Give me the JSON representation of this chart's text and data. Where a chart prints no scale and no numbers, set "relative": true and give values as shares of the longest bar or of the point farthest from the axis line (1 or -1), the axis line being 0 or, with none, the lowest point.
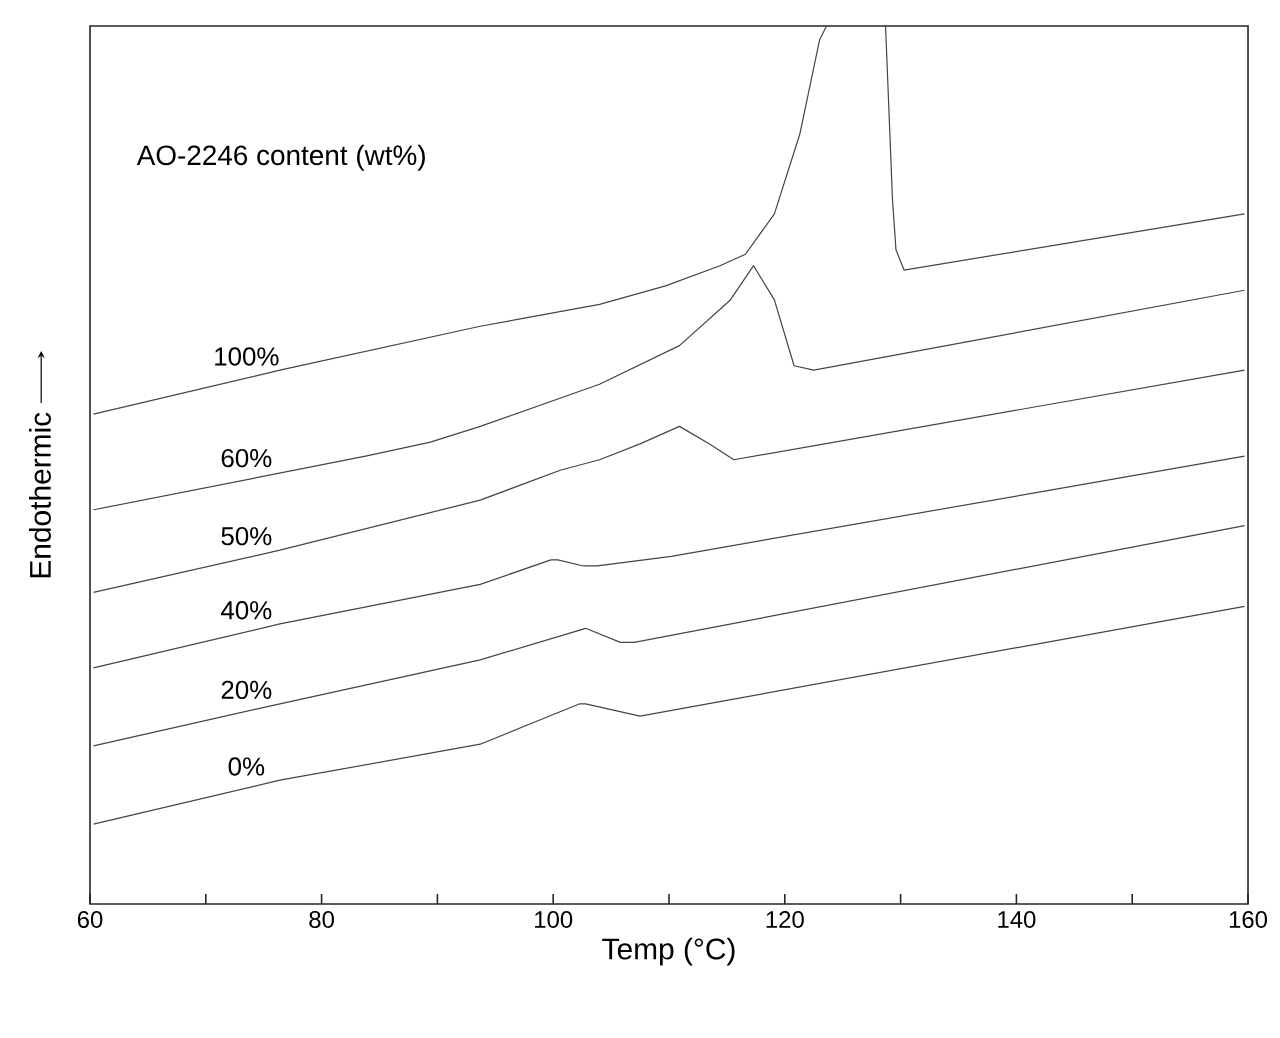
{
  "chart_data": {
    "type": "line",
    "relative": true,
    "xlabel": "Temp (°C)",
    "ylabel": "Endothermic",
    "annotations": [
      "AO-2246 content (wt%)"
    ],
    "xlim": [
      60,
      160
    ],
    "xticks": [
      60,
      {
        "value": 70,
        "label": null
      },
      80,
      {
        "value": 90,
        "label": null
      },
      100,
      {
        "value": 110,
        "label": null
      },
      120,
      {
        "value": 130,
        "label": null
      },
      140,
      {
        "value": 150,
        "label": null
      },
      160
    ],
    "tick_labels": "x",
    "grid": false,
    "legend": false,
    "marker": "none",
    "line_style": "solid",
    "series": [
      {
        "name": "100%",
        "color": "#444444",
        "x": [
          60.3,
          76.4,
          93.7,
          104.0,
          109.7,
          114.4,
          116.6,
          119.1,
          121.3,
          123.0,
          123.6,
          126.0,
          128.7,
          129.3,
          129.6,
          130.3,
          159.7
        ],
        "values": [
          0.558,
          0.608,
          0.658,
          0.683,
          0.704,
          0.727,
          0.74,
          0.786,
          0.877,
          0.984,
          1.0,
          null,
          1.0,
          0.802,
          0.745,
          0.722,
          0.786
        ]
      },
      {
        "name": "60%",
        "color": "#444444",
        "x": [
          60.3,
          83.8,
          89.4,
          93.7,
          104.0,
          110.9,
          115.3,
          117.3,
          119.1,
          120.8,
          122.5,
          159.7
        ],
        "values": [
          0.449,
          0.51,
          0.526,
          0.544,
          0.592,
          0.636,
          0.688,
          0.727,
          0.688,
          0.613,
          0.608,
          0.699
        ]
      },
      {
        "name": "50%",
        "color": "#444444",
        "x": [
          60.3,
          76.4,
          93.7,
          100.6,
          104.0,
          107.5,
          110.9,
          113.5,
          115.6,
          159.7
        ],
        "values": [
          0.355,
          0.403,
          0.46,
          0.494,
          0.506,
          0.524,
          0.544,
          0.524,
          0.506,
          0.608
        ]
      },
      {
        "name": "40%",
        "color": "#444444",
        "x": [
          60.3,
          76.4,
          93.7,
          99.8,
          100.4,
          102.6,
          103.8,
          110.2,
          159.7
        ],
        "values": [
          0.269,
          0.319,
          0.364,
          0.392,
          0.392,
          0.385,
          0.385,
          0.396,
          0.51
        ]
      },
      {
        "name": "20%",
        "color": "#444444",
        "x": [
          60.3,
          76.4,
          93.7,
          102.3,
          102.8,
          105.8,
          107.0,
          159.7
        ],
        "values": [
          0.18,
          0.228,
          0.278,
          0.312,
          0.314,
          0.298,
          0.298,
          0.431
        ]
      },
      {
        "name": "0%",
        "color": "#444444",
        "x": [
          60.3,
          76.4,
          93.7,
          102.3,
          102.8,
          107.5,
          159.7
        ],
        "values": [
          0.091,
          0.141,
          0.182,
          0.228,
          0.228,
          0.214,
          0.339
        ]
      }
    ]
  }
}
